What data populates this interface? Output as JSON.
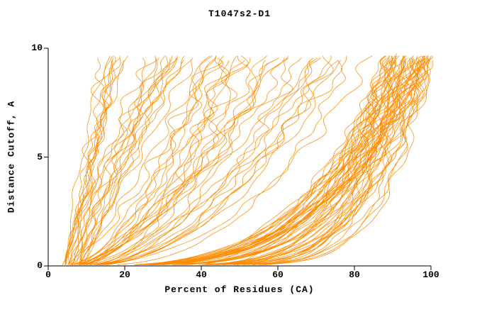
{
  "chart_data": {
    "type": "line",
    "title": "T1047s2-D1",
    "xlabel": "Percent of Residues (CA)",
    "ylabel": "Distance Cutoff, A",
    "xlim": [
      0,
      100
    ],
    "ylim": [
      0,
      10
    ],
    "x_ticks": [
      0,
      20,
      40,
      60,
      80,
      100
    ],
    "y_ticks": [
      0,
      5,
      10
    ],
    "grid": false,
    "legend": "none",
    "line_color": "#ff8c00",
    "axis_color": "#000000",
    "background": "#ffffff",
    "curve_top_y": 9.6,
    "series_description": "Approximately 117 unlabeled monotonic model-accuracy curves (percent of CA residues under each distance cutoff), rendered as a dense orange fan from lower-left to upper-right",
    "curve_groups": [
      {
        "name": "steep-left",
        "count": 26,
        "x_start": [
          4,
          9
        ],
        "x_end": [
          12,
          42
        ],
        "exponent": [
          0.75,
          1.5
        ],
        "wobble": 1.7
      },
      {
        "name": "mid-fan",
        "count": 32,
        "x_start": [
          4,
          9
        ],
        "x_end": [
          42,
          88
        ],
        "exponent": [
          0.35,
          0.75
        ],
        "wobble": 1.9
      },
      {
        "name": "right-dense",
        "count": 55,
        "x_start": [
          4,
          8
        ],
        "x_end": [
          88,
          101
        ],
        "exponent": [
          0.1,
          0.32
        ],
        "wobble": 1.5
      },
      {
        "name": "bottom-shallow",
        "count": 4,
        "x_start": [
          35,
          52
        ],
        "x_end": [
          97,
          101
        ],
        "exponent": [
          0.4,
          0.6
        ],
        "wobble": 0.8
      }
    ]
  }
}
